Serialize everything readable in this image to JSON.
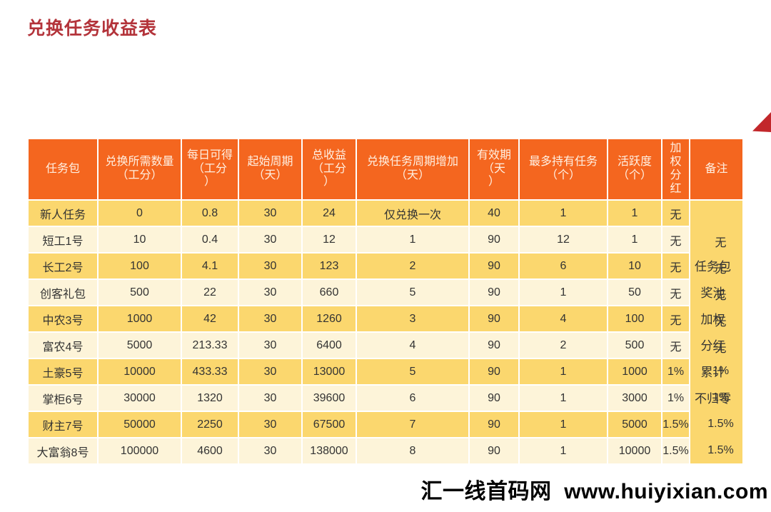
{
  "page": {
    "title": "兑换任务收益表",
    "watermark": "汇一线首码网  www.huiyixian.com"
  },
  "colors": {
    "title_red": "#b3333a",
    "header_bg": "#f4661f",
    "header_text": "#fff0e2",
    "row_gold": "#fbd76e",
    "row_cream": "#fdf4d9",
    "cell_text": "#333333",
    "triangle_red": "#c2272b"
  },
  "table": {
    "columns": [
      {
        "label": "任务包",
        "width": 96
      },
      {
        "label": "兑换所需数量\n（工分）",
        "width": 115
      },
      {
        "label": "每日可得\n（工分\n）",
        "width": 78
      },
      {
        "label": "起始周期\n（天）",
        "width": 87
      },
      {
        "label": "总收益\n（工分\n）",
        "width": 74
      },
      {
        "label": "兑换任务周期增加\n（天）",
        "width": 156
      },
      {
        "label": "有效期\n（天\n）",
        "width": 68
      },
      {
        "label": "最多持有任务\n（个）",
        "width": 122
      },
      {
        "label": "活跃度\n（个）",
        "width": 74
      },
      {
        "label": "加\n权\n分\n红",
        "width": 37
      },
      {
        "label": "备注",
        "width": 73
      }
    ],
    "rows": [
      {
        "cells": [
          "新人任务",
          "0",
          "0.8",
          "30",
          "24",
          "仅兑换一次",
          "40",
          "1",
          "1",
          "无"
        ]
      },
      {
        "cells": [
          "短工1号",
          "10",
          "0.4",
          "30",
          "12",
          "1",
          "90",
          "12",
          "1",
          "无"
        ]
      },
      {
        "cells": [
          "长工2号",
          "100",
          "4.1",
          "30",
          "123",
          "2",
          "90",
          "6",
          "10",
          "无"
        ]
      },
      {
        "cells": [
          "创客礼包",
          "500",
          "22",
          "30",
          "660",
          "5",
          "90",
          "1",
          "50",
          "无"
        ]
      },
      {
        "cells": [
          "中农3号",
          "1000",
          "42",
          "30",
          "1260",
          "3",
          "90",
          "4",
          "100",
          "无"
        ]
      },
      {
        "cells": [
          "富农4号",
          "5000",
          "213.33",
          "30",
          "6400",
          "4",
          "90",
          "2",
          "500",
          "无"
        ]
      },
      {
        "cells": [
          "土豪5号",
          "10000",
          "433.33",
          "30",
          "13000",
          "5",
          "90",
          "1",
          "1000",
          "1%"
        ]
      },
      {
        "cells": [
          "掌柜6号",
          "30000",
          "1320",
          "30",
          "39600",
          "6",
          "90",
          "1",
          "3000",
          "1%"
        ]
      },
      {
        "cells": [
          "财主7号",
          "50000",
          "2250",
          "30",
          "67500",
          "7",
          "90",
          "1",
          "5000",
          "1.5%"
        ]
      },
      {
        "cells": [
          "大富翁8号",
          "100000",
          "4600",
          "30",
          "138000",
          "8",
          "90",
          "1",
          "10000",
          "1.5%"
        ]
      }
    ],
    "remarks": {
      "row_values": [
        "",
        "无",
        "无",
        "无",
        "无",
        "无",
        "1%",
        "1%",
        "1.5%",
        "1.5%"
      ],
      "note_text": "任务包奖池加权分红累计不归零",
      "note_display": "任务包\n奖池\n加权\n分红\n累计\n不归零"
    }
  }
}
